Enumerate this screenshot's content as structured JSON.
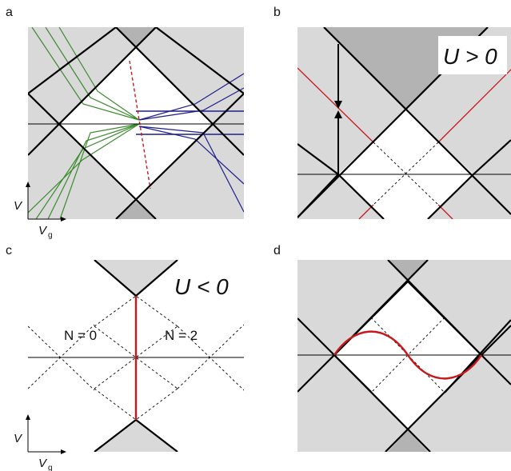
{
  "panels": {
    "a": {
      "letter": "a"
    },
    "b": {
      "letter": "b",
      "condition": "U > 0"
    },
    "c": {
      "letter": "c",
      "condition": "U < 0",
      "left_label": "N = 0",
      "right_label": "N = 2"
    },
    "d": {
      "letter": "d"
    }
  },
  "axes_labels": {
    "v": "V",
    "vg": "V",
    "vg_sub": "g"
  },
  "colors": {
    "background_gray": "#d9d9d9",
    "dark_gray": "#b3b3b3",
    "green": "#3b8a2e",
    "blue": "#1f1f8a",
    "red": "#c8181c",
    "line": "#000000"
  }
}
